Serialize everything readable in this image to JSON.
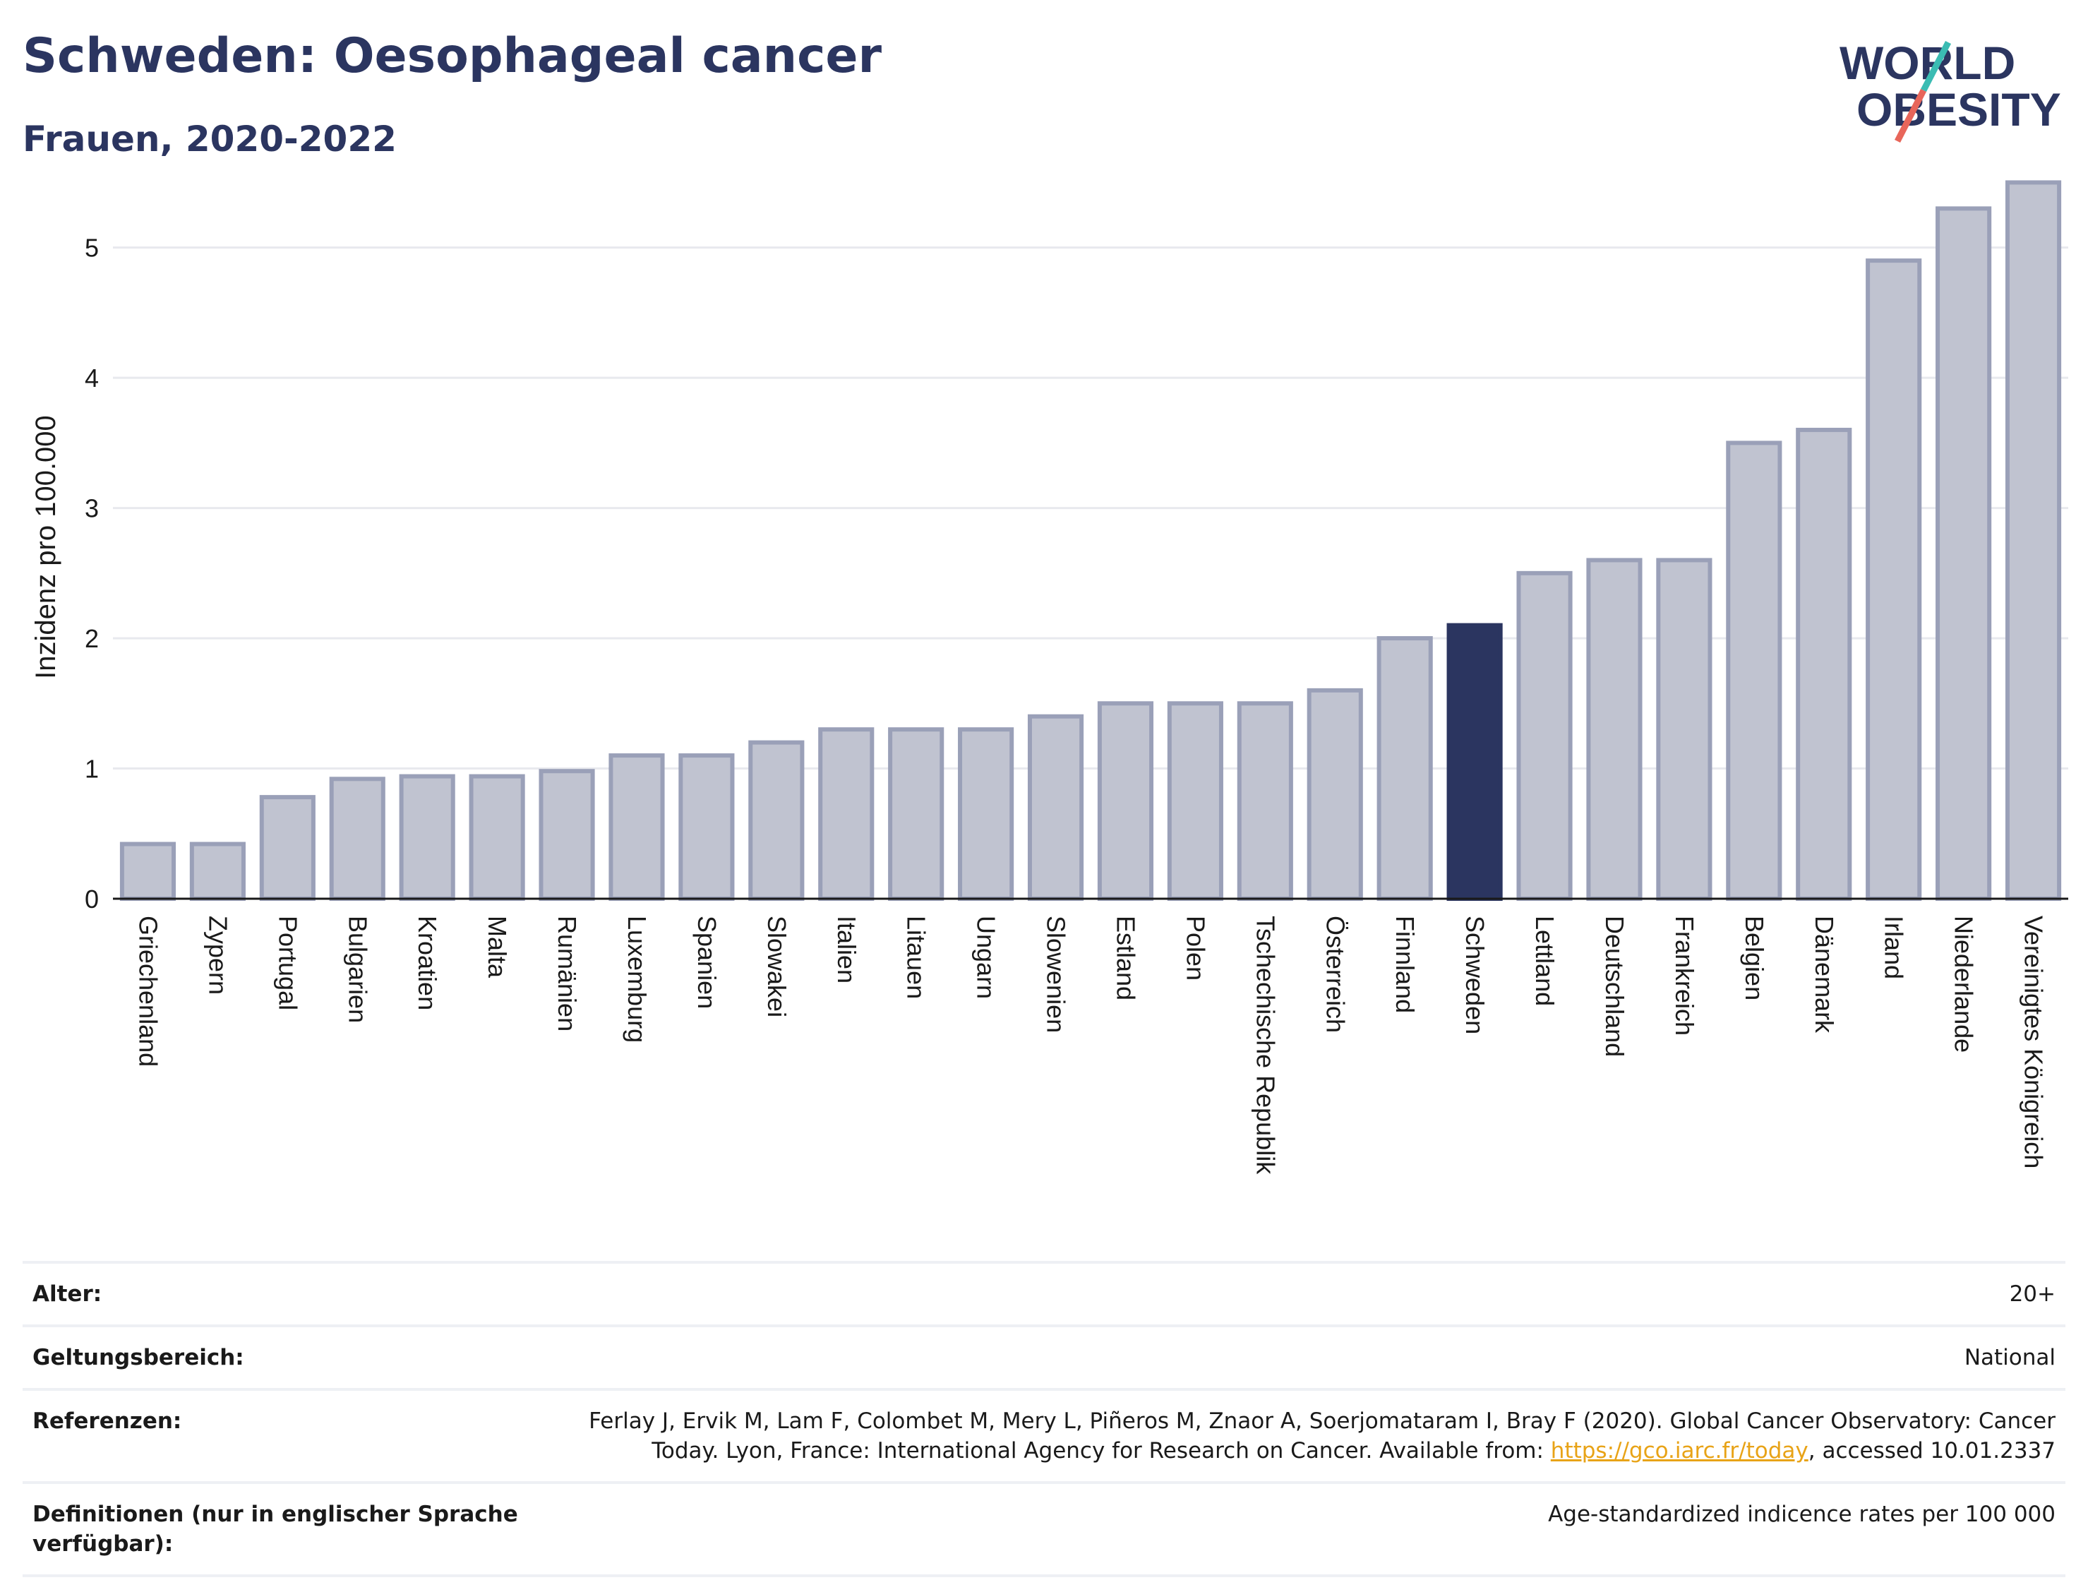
{
  "header": {
    "title": "Schweden: Oesophageal cancer",
    "subtitle": "Frauen, 2020-2022",
    "logo_line1": "WORLD",
    "logo_line2": "OBESITY"
  },
  "colors": {
    "bar": "#c0c3d0",
    "bar_border": "#9aa0b8",
    "highlight": "#2b3560",
    "grid": "#e8e9ee",
    "logo_text": "#2b3560",
    "logo_slash_top": "#3bbcb3",
    "logo_slash_bottom": "#e8665a"
  },
  "chart_data": {
    "type": "bar",
    "ylabel": "Inzidenz pro 100.000",
    "ylim": [
      0,
      5.6
    ],
    "yticks": [
      0,
      1,
      2,
      3,
      4,
      5
    ],
    "grid": true,
    "highlight": "Schweden",
    "categories": [
      "Griechenland",
      "Zypern",
      "Portugal",
      "Bulgarien",
      "Kroatien",
      "Malta",
      "Rumänien",
      "Luxemburg",
      "Spanien",
      "Slowakei",
      "Italien",
      "Litauen",
      "Ungarn",
      "Slowenien",
      "Estland",
      "Polen",
      "Tschechische Republik",
      "Österreich",
      "Finnland",
      "Schweden",
      "Lettland",
      "Deutschland",
      "Frankreich",
      "Belgien",
      "Dänemark",
      "Irland",
      "Niederlande",
      "Vereinigtes Königreich"
    ],
    "values": [
      0.42,
      0.42,
      0.78,
      0.92,
      0.94,
      0.94,
      0.98,
      1.1,
      1.1,
      1.2,
      1.3,
      1.3,
      1.3,
      1.4,
      1.5,
      1.5,
      1.5,
      1.6,
      2.0,
      2.1,
      2.5,
      2.6,
      2.6,
      3.5,
      3.6,
      4.9,
      5.3,
      5.5
    ]
  },
  "meta": {
    "age_label": "Alter:",
    "age_value": "20+",
    "scope_label": "Geltungsbereich:",
    "scope_value": "National",
    "refs_label": "Referenzen:",
    "refs_text_1": "Ferlay J, Ervik M, Lam F, Colombet M, Mery L, Piñeros M, Znaor A, Soerjomataram I, Bray F (2020). Global Cancer Observatory: Cancer Today. Lyon, France: International Agency for Research on Cancer. Available from: ",
    "refs_link": "https://gco.iarc.fr/today",
    "refs_text_2": ", accessed 10.01.2337",
    "defs_label": "Definitionen (nur in englischer Sprache verfügbar):",
    "defs_value": "Age-standardized indicence rates per 100 000"
  }
}
